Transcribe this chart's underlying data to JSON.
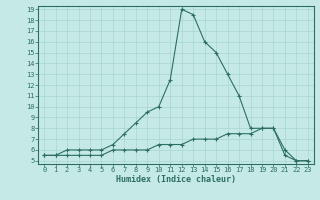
{
  "xlabel": "Humidex (Indice chaleur)",
  "x_values": [
    0,
    1,
    2,
    3,
    4,
    5,
    6,
    7,
    8,
    9,
    10,
    11,
    12,
    13,
    14,
    15,
    16,
    17,
    18,
    19,
    20,
    21,
    22,
    23
  ],
  "line1_y": [
    5.5,
    5.5,
    6.0,
    6.0,
    6.0,
    6.0,
    6.5,
    7.5,
    8.5,
    9.5,
    10.0,
    12.5,
    19.0,
    18.5,
    16.0,
    15.0,
    13.0,
    11.0,
    8.0,
    8.0,
    8.0,
    6.0,
    5.0,
    5.0
  ],
  "line2_y": [
    5.5,
    5.5,
    5.5,
    5.5,
    5.5,
    5.5,
    6.0,
    6.0,
    6.0,
    6.0,
    6.5,
    6.5,
    6.5,
    7.0,
    7.0,
    7.0,
    7.5,
    7.5,
    7.5,
    8.0,
    8.0,
    5.5,
    5.0,
    5.0
  ],
  "line_color": "#2d6e63",
  "bg_color": "#c5eae6",
  "grid_color": "#a8d5d0",
  "ylim_min": 5,
  "ylim_max": 19,
  "xlim_min": 0,
  "xlim_max": 23,
  "yticks": [
    5,
    6,
    7,
    8,
    9,
    10,
    11,
    12,
    13,
    14,
    15,
    16,
    17,
    18,
    19
  ],
  "xticks": [
    0,
    1,
    2,
    3,
    4,
    5,
    6,
    7,
    8,
    9,
    10,
    11,
    12,
    13,
    14,
    15,
    16,
    17,
    18,
    19,
    20,
    21,
    22,
    23
  ],
  "tick_fontsize": 5.0,
  "xlabel_fontsize": 6.0
}
